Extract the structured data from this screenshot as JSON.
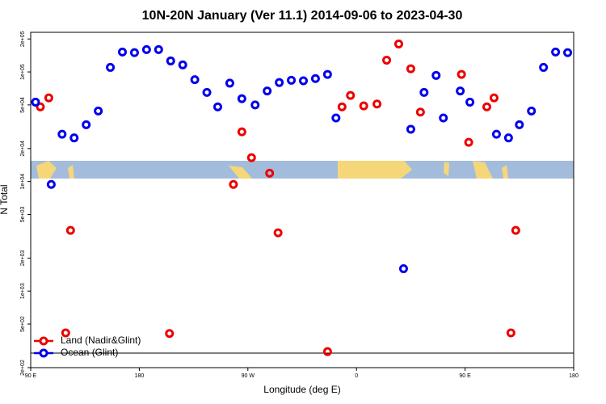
{
  "chart_data": {
    "type": "scatter",
    "title": "10N-20N January (Ver 11.1)   2014-09-06 to 2023-04-30",
    "x_label": "Longitude (deg E)",
    "y_label": "N Total",
    "xlim": [
      90,
      540
    ],
    "xticks": [
      {
        "value": 90,
        "label": "90 E"
      },
      {
        "value": 180,
        "label": "180"
      },
      {
        "value": 270,
        "label": "90 W"
      },
      {
        "value": 360,
        "label": "0"
      },
      {
        "value": 450,
        "label": "90 E"
      },
      {
        "value": 540,
        "label": "180"
      }
    ],
    "ylim": [
      200,
      230000
    ],
    "log_y": true,
    "yticks": [
      {
        "value": 200,
        "label": "2e+02"
      },
      {
        "value": 500,
        "label": "5e+02"
      },
      {
        "value": 1000,
        "label": "1e+03"
      },
      {
        "value": 2000,
        "label": "2e+03"
      },
      {
        "value": 5000,
        "label": "5e+03"
      },
      {
        "value": 10000,
        "label": "1e+04"
      },
      {
        "value": 20000,
        "label": "2e+04"
      },
      {
        "value": 50000,
        "label": "5e+04"
      },
      {
        "value": 100000,
        "label": "1e+05"
      },
      {
        "value": 200000,
        "label": "2e+05"
      }
    ],
    "legend": "bottom-left",
    "series": [
      {
        "name": "Land (Nadir&Glint)",
        "color": "#ee0000",
        "x": [
          98,
          105,
          119,
          123,
          205,
          258,
          265,
          273,
          288,
          295,
          336,
          348,
          355,
          366,
          377,
          385,
          395,
          405,
          413,
          447,
          453,
          468,
          474,
          488,
          492
        ],
        "values": [
          48000,
          58000,
          415,
          3580,
          410,
          9400,
          28400,
          16500,
          11900,
          3400,
          280,
          48000,
          61000,
          49000,
          51000,
          128000,
          180000,
          107000,
          43000,
          95000,
          22800,
          48000,
          58000,
          415,
          3580
        ]
      },
      {
        "name": "Ocean (Glint)",
        "color": "#0000ee",
        "x": [
          94,
          107,
          116,
          126,
          136,
          146,
          156,
          166,
          176,
          186,
          196,
          206,
          216,
          226,
          236,
          245,
          255,
          265,
          276,
          286,
          296,
          306,
          316,
          326,
          336,
          343,
          399,
          405,
          416,
          426,
          432,
          446,
          454,
          476,
          486,
          495,
          505,
          515,
          525,
          535
        ],
        "values": [
          53000,
          9400,
          27000,
          25000,
          33000,
          44000,
          110000,
          152000,
          150000,
          160000,
          160000,
          126000,
          116000,
          85000,
          65000,
          48000,
          79000,
          57000,
          50000,
          67000,
          80000,
          84000,
          83000,
          87000,
          95000,
          38000,
          1600,
          30000,
          65000,
          93000,
          38000,
          67000,
          53000,
          27000,
          25000,
          33000,
          44000,
          110000,
          152000,
          150000
        ]
      }
    ]
  }
}
